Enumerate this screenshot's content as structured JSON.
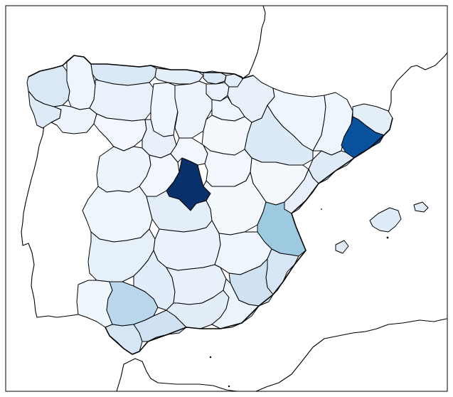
{
  "map": {
    "projection": "choropleth",
    "colormap": "Blues",
    "background": "#ffffff",
    "land_outline_color": "#000000",
    "provinces": [
      {
        "id": "coruna",
        "fill": "#dae8f6"
      },
      {
        "id": "lugo",
        "fill": "#eef5fc"
      },
      {
        "id": "pontevedra",
        "fill": "#deebf7"
      },
      {
        "id": "ourense",
        "fill": "#edf4fc"
      },
      {
        "id": "asturias",
        "fill": "#dae8f6"
      },
      {
        "id": "cantabria",
        "fill": "#e3eef9"
      },
      {
        "id": "vizcaya",
        "fill": "#d9e7f5"
      },
      {
        "id": "guipuzcoa",
        "fill": "#e1edf8"
      },
      {
        "id": "alava",
        "fill": "#eaf2fb"
      },
      {
        "id": "navarra",
        "fill": "#e8f1fa"
      },
      {
        "id": "leon",
        "fill": "#e9f2fa"
      },
      {
        "id": "palencia",
        "fill": "#f0f6fd"
      },
      {
        "id": "burgos",
        "fill": "#edf4fc"
      },
      {
        "id": "larioja",
        "fill": "#eef5fc"
      },
      {
        "id": "huesca",
        "fill": "#f0f6fd"
      },
      {
        "id": "lleida",
        "fill": "#eef5fc"
      },
      {
        "id": "girona",
        "fill": "#e3eef9"
      },
      {
        "id": "barcelona",
        "fill": "#08519c"
      },
      {
        "id": "tarragona",
        "fill": "#deebf7"
      },
      {
        "id": "zamora",
        "fill": "#f2f7fd"
      },
      {
        "id": "valladolid",
        "fill": "#e8f1fa"
      },
      {
        "id": "soria",
        "fill": "#f5f9fe"
      },
      {
        "id": "zaragoza",
        "fill": "#dce9f6"
      },
      {
        "id": "teruel",
        "fill": "#f5f9fe"
      },
      {
        "id": "castellon",
        "fill": "#e7f0fa"
      },
      {
        "id": "salamanca",
        "fill": "#edf4fc"
      },
      {
        "id": "avila",
        "fill": "#f2f7fd"
      },
      {
        "id": "segovia",
        "fill": "#f2f7fd"
      },
      {
        "id": "guadalajara",
        "fill": "#f2f7fd"
      },
      {
        "id": "madrid",
        "fill": "#08306b"
      },
      {
        "id": "caceres",
        "fill": "#eff6fc"
      },
      {
        "id": "toledo",
        "fill": "#e3eef9"
      },
      {
        "id": "cuenca",
        "fill": "#f4f9fe"
      },
      {
        "id": "valencia",
        "fill": "#9ecae1"
      },
      {
        "id": "badajoz",
        "fill": "#e6f0f9"
      },
      {
        "id": "ciudadreal",
        "fill": "#eaf2fb"
      },
      {
        "id": "albacete",
        "fill": "#eef5fc"
      },
      {
        "id": "alicante",
        "fill": "#d6e6f4"
      },
      {
        "id": "huelva",
        "fill": "#eff6fc"
      },
      {
        "id": "sevilla",
        "fill": "#bad6eb"
      },
      {
        "id": "cordoba",
        "fill": "#e1edf8"
      },
      {
        "id": "jaen",
        "fill": "#e8f1fa"
      },
      {
        "id": "murcia",
        "fill": "#d0e1f2"
      },
      {
        "id": "cadiz",
        "fill": "#d6e6f4"
      },
      {
        "id": "malaga",
        "fill": "#cfe1f2"
      },
      {
        "id": "granada",
        "fill": "#e2edf8"
      },
      {
        "id": "almeria",
        "fill": "#ebf3fb"
      },
      {
        "id": "baleares",
        "fill": "#dfebf7"
      }
    ]
  }
}
